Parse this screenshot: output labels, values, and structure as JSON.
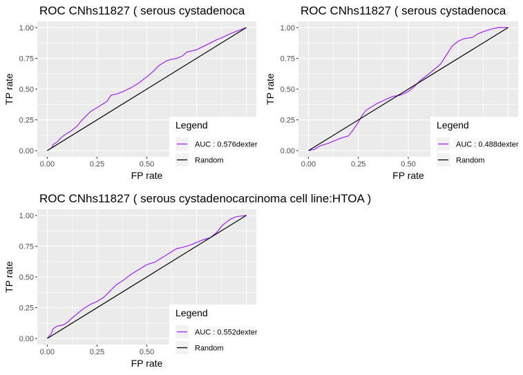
{
  "colors": {
    "panel_bg": "#EBEBEB",
    "grid": "#FFFFFF",
    "model_line": "#A020F0",
    "random_line": "#000000",
    "legend_key_bg": "#F2F2F2",
    "tick_text": "#4D4D4D"
  },
  "chart_data": [
    {
      "type": "line",
      "title": "ROC CNhs11827  ( serous cystadenoca",
      "xlabel": "FP rate",
      "ylabel": "TP rate",
      "xlim": [
        0,
        1
      ],
      "ylim": [
        0,
        1
      ],
      "x_ticks": [
        "0.00",
        "0.25",
        "0.50"
      ],
      "y_ticks": [
        "0.00",
        "0.25",
        "0.50",
        "0.75",
        "1.00"
      ],
      "grid": true,
      "legend": {
        "title": "Legend",
        "position": "bottom-right",
        "entries": [
          "AUC : 0.576dexter",
          "Random"
        ]
      },
      "series": [
        {
          "name": "AUC : 0.576dexter",
          "color": "#A020F0",
          "x": [
            0,
            0.02,
            0.03,
            0.05,
            0.06,
            0.08,
            0.1,
            0.12,
            0.15,
            0.17,
            0.2,
            0.22,
            0.25,
            0.27,
            0.3,
            0.32,
            0.35,
            0.38,
            0.42,
            0.46,
            0.5,
            0.53,
            0.56,
            0.6,
            0.62,
            0.65,
            0.68,
            0.7,
            0.75,
            0.8,
            0.85,
            0.88,
            0.92,
            0.95,
            1
          ],
          "y": [
            0,
            0.02,
            0.05,
            0.07,
            0.09,
            0.12,
            0.14,
            0.16,
            0.2,
            0.24,
            0.29,
            0.32,
            0.35,
            0.37,
            0.4,
            0.45,
            0.46,
            0.48,
            0.51,
            0.55,
            0.6,
            0.64,
            0.69,
            0.73,
            0.74,
            0.75,
            0.77,
            0.8,
            0.82,
            0.86,
            0.9,
            0.92,
            0.95,
            0.97,
            1
          ]
        },
        {
          "name": "Random",
          "color": "#000000",
          "x": [
            0,
            1
          ],
          "y": [
            0,
            1
          ]
        }
      ]
    },
    {
      "type": "line",
      "title": "ROC CNhs11827  ( serous cystadenoca",
      "xlabel": "FP rate",
      "ylabel": "TP rate",
      "xlim": [
        0,
        1
      ],
      "ylim": [
        0,
        1
      ],
      "x_ticks": [
        "0.00",
        "0.25",
        "0.50"
      ],
      "y_ticks": [
        "0.00",
        "0.25",
        "0.50",
        "0.75",
        "1.00"
      ],
      "grid": true,
      "legend": {
        "title": "Legend",
        "position": "bottom-right",
        "entries": [
          "AUC : 0.488dexter",
          "Random"
        ]
      },
      "series": [
        {
          "name": "AUC : 0.488dexter",
          "color": "#A020F0",
          "x": [
            0,
            0.03,
            0.06,
            0.1,
            0.13,
            0.16,
            0.2,
            0.22,
            0.25,
            0.27,
            0.29,
            0.31,
            0.34,
            0.38,
            0.42,
            0.46,
            0.5,
            0.53,
            0.56,
            0.6,
            0.63,
            0.66,
            0.68,
            0.7,
            0.72,
            0.75,
            0.78,
            0.82,
            0.85,
            0.88,
            0.92,
            0.95,
            1
          ],
          "y": [
            0,
            0.01,
            0.04,
            0.06,
            0.08,
            0.1,
            0.12,
            0.16,
            0.23,
            0.29,
            0.33,
            0.35,
            0.38,
            0.41,
            0.44,
            0.45,
            0.48,
            0.52,
            0.57,
            0.62,
            0.66,
            0.7,
            0.75,
            0.8,
            0.85,
            0.89,
            0.91,
            0.92,
            0.95,
            0.97,
            0.99,
            1,
            1
          ]
        },
        {
          "name": "Random",
          "color": "#000000",
          "x": [
            0,
            1
          ],
          "y": [
            0,
            1
          ]
        }
      ]
    },
    {
      "type": "line",
      "title": "ROC CNhs11827  ( serous cystadenocarcinoma cell line:HTOA )",
      "xlabel": "FP rate",
      "ylabel": "TP rate",
      "xlim": [
        0,
        1
      ],
      "ylim": [
        0,
        1
      ],
      "x_ticks": [
        "0.00",
        "0.25",
        "0.50"
      ],
      "y_ticks": [
        "0.00",
        "0.25",
        "0.50",
        "0.75",
        "1.00"
      ],
      "grid": true,
      "legend": {
        "title": "Legend",
        "position": "bottom-right",
        "entries": [
          "AUC : 0.552dexter",
          "Random"
        ]
      },
      "series": [
        {
          "name": "AUC : 0.552dexter",
          "color": "#A020F0",
          "x": [
            0,
            0.02,
            0.03,
            0.05,
            0.08,
            0.1,
            0.12,
            0.15,
            0.18,
            0.2,
            0.22,
            0.25,
            0.28,
            0.3,
            0.33,
            0.35,
            0.38,
            0.42,
            0.46,
            0.5,
            0.54,
            0.58,
            0.62,
            0.65,
            0.68,
            0.72,
            0.75,
            0.78,
            0.82,
            0.85,
            0.88,
            0.92,
            0.95,
            1
          ],
          "y": [
            0,
            0.04,
            0.08,
            0.1,
            0.11,
            0.13,
            0.16,
            0.2,
            0.24,
            0.26,
            0.28,
            0.3,
            0.33,
            0.36,
            0.41,
            0.44,
            0.47,
            0.52,
            0.56,
            0.6,
            0.62,
            0.66,
            0.7,
            0.73,
            0.74,
            0.76,
            0.78,
            0.8,
            0.82,
            0.86,
            0.92,
            0.97,
            0.99,
            1
          ]
        },
        {
          "name": "Random",
          "color": "#000000",
          "x": [
            0,
            1
          ],
          "y": [
            0,
            1
          ]
        }
      ]
    }
  ]
}
